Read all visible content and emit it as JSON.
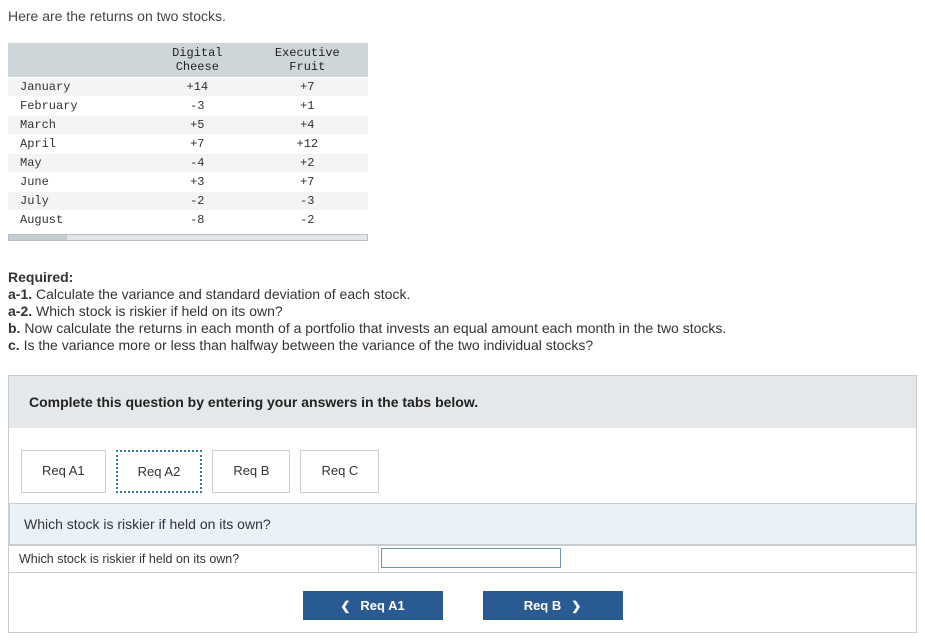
{
  "intro": "Here are the returns on two stocks.",
  "table": {
    "columns": [
      "",
      "Digital Cheese",
      "Executive Fruit"
    ],
    "col1_lines": [
      "Digital",
      "Cheese"
    ],
    "col2_lines": [
      "Executive",
      "Fruit"
    ],
    "rows": [
      {
        "month": "January",
        "dc": "+14",
        "ef": "+7"
      },
      {
        "month": "February",
        "dc": "-3",
        "ef": "+1"
      },
      {
        "month": "March",
        "dc": "+5",
        "ef": "+4"
      },
      {
        "month": "April",
        "dc": "+7",
        "ef": "+12"
      },
      {
        "month": "May",
        "dc": "-4",
        "ef": "+2"
      },
      {
        "month": "June",
        "dc": "+3",
        "ef": "+7"
      },
      {
        "month": "July",
        "dc": "-2",
        "ef": "-3"
      },
      {
        "month": "August",
        "dc": "-8",
        "ef": "-2"
      }
    ],
    "header_bg": "#cfd6da",
    "row_odd_bg": "#f2f4f5",
    "row_even_bg": "#ffffff",
    "font_family": "Courier New",
    "font_size_pt": 9
  },
  "required": {
    "heading": "Required:",
    "items": [
      {
        "label": "a-1.",
        "text": "Calculate the variance and standard deviation of each stock."
      },
      {
        "label": "a-2.",
        "text": "Which stock is riskier if held on its own?"
      },
      {
        "label": "b.",
        "text": "Now calculate the returns in each month of a portfolio that invests an equal amount each month in the two stocks."
      },
      {
        "label": "c.",
        "text": "Is the variance more or less than halfway between the variance of the two individual stocks?"
      }
    ]
  },
  "panel": {
    "instruction": "Complete this question by entering your answers in the tabs below.",
    "tabs": [
      {
        "label": "Req A1",
        "active": false
      },
      {
        "label": "Req A2",
        "active": true
      },
      {
        "label": "Req B",
        "active": false
      },
      {
        "label": "Req C",
        "active": false
      }
    ],
    "question": "Which stock is riskier if held on its own?",
    "answer_label": "Which stock is riskier if held on its own?",
    "nav": {
      "prev": "Req A1",
      "next": "Req B"
    },
    "colors": {
      "instruction_bg": "#e5e8ea",
      "question_bg": "#eaf2f9",
      "nav_bg": "#2a5a92",
      "tab_active_border": "#3a74b8",
      "border": "#c7cdd1"
    }
  }
}
